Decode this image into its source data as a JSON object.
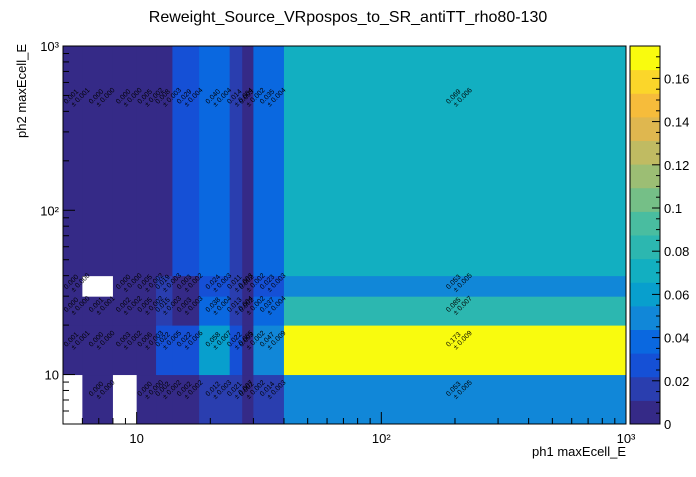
{
  "chart_data": {
    "type": "heatmap",
    "title": "Reweight_Source_VRpospos_to_SR_antiTT_rho80-130",
    "xlabel": "ph1 maxEcell_E",
    "ylabel": "ph2 maxEcell_E",
    "x_scale": "log",
    "y_scale": "log",
    "xlim": [
      5,
      1000
    ],
    "ylim": [
      5,
      1000
    ],
    "x_edges": [
      5,
      6,
      8,
      10,
      12,
      14,
      18,
      24,
      27,
      30,
      40,
      1000
    ],
    "y_edges": [
      5,
      10,
      20,
      30,
      40,
      1000
    ],
    "x_tick_labels": [
      "10",
      "10²",
      "10³"
    ],
    "x_tick_values": [
      10,
      100,
      1000
    ],
    "y_tick_labels": [
      "10",
      "10²",
      "10³"
    ],
    "y_tick_values": [
      10,
      100,
      1000
    ],
    "z_range": [
      0,
      0.175
    ],
    "colorbar_ticks": [
      "0",
      "0.02",
      "0.04",
      "0.06",
      "0.08",
      "0.1",
      "0.12",
      "0.14",
      "0.16"
    ],
    "colorbar_tick_values": [
      0,
      0.02,
      0.04,
      0.06,
      0.08,
      0.1,
      0.12,
      0.14,
      0.16
    ],
    "palette": [
      "#352a87",
      "#2a3eaf",
      "#1550d6",
      "#0a68e0",
      "#1187d8",
      "#089fcd",
      "#12afc1",
      "#2cb7b0",
      "#49bda0",
      "#75bf87",
      "#9cbe74",
      "#c0bb62",
      "#dfb74f",
      "#f6bc3b",
      "#fbd62a",
      "#f9fb0e"
    ],
    "cells": [
      {
        "ix": 0,
        "iy": 0,
        "v": null,
        "label": ""
      },
      {
        "ix": 1,
        "iy": 0,
        "v": 0.0,
        "label": "0.000\n± 0.000"
      },
      {
        "ix": 2,
        "iy": 0,
        "v": null,
        "label": ""
      },
      {
        "ix": 3,
        "iy": 0,
        "v": 0.0,
        "label": "0.000\n± 0.000"
      },
      {
        "ix": 4,
        "iy": 0,
        "v": 0.002,
        "label": "0.002\n± 0.002"
      },
      {
        "ix": 5,
        "iy": 0,
        "v": 0.002,
        "label": "0.002\n± 0.002"
      },
      {
        "ix": 6,
        "iy": 0,
        "v": 0.012,
        "label": "0.012\n± 0.003"
      },
      {
        "ix": 7,
        "iy": 0,
        "v": 0.021,
        "label": "0.021\n± 0.007"
      },
      {
        "ix": 8,
        "iy": 0,
        "v": 0.002,
        "label": "0.002\n± 0.002"
      },
      {
        "ix": 9,
        "iy": 0,
        "v": 0.014,
        "label": "0.014\n± 0.003"
      },
      {
        "ix": 10,
        "iy": 0,
        "v": 0.053,
        "label": "0.053\n± 0.005"
      },
      {
        "ix": 0,
        "iy": 1,
        "v": 0.001,
        "label": "0.001\n± 0.001"
      },
      {
        "ix": 1,
        "iy": 1,
        "v": 0.0,
        "label": "0.000\n± 0.000"
      },
      {
        "ix": 2,
        "iy": 1,
        "v": 0.003,
        "label": "0.003\n± 0.002"
      },
      {
        "ix": 3,
        "iy": 1,
        "v": 0.006,
        "label": "0.006\n± 0.003"
      },
      {
        "ix": 4,
        "iy": 1,
        "v": 0.022,
        "label": "0.022\n± 0.005"
      },
      {
        "ix": 5,
        "iy": 1,
        "v": 0.022,
        "label": "0.022\n± 0.006"
      },
      {
        "ix": 6,
        "iy": 1,
        "v": 0.058,
        "label": "0.058\n± 0.007"
      },
      {
        "ix": 7,
        "iy": 1,
        "v": 0.022,
        "label": "0.022\n± 0.005"
      },
      {
        "ix": 8,
        "iy": 1,
        "v": 0.003,
        "label": "0.003\n± 0.002"
      },
      {
        "ix": 9,
        "iy": 1,
        "v": 0.047,
        "label": "0.047\n± 0.009"
      },
      {
        "ix": 10,
        "iy": 1,
        "v": 0.173,
        "label": "0.173\n± 0.009"
      },
      {
        "ix": 0,
        "iy": 2,
        "v": 0.0,
        "label": "0.000\n± 0.000"
      },
      {
        "ix": 1,
        "iy": 2,
        "v": 0.001,
        "label": "0.001\n± 0.001"
      },
      {
        "ix": 2,
        "iy": 2,
        "v": 0.002,
        "label": "0.002\n± 0.002"
      },
      {
        "ix": 3,
        "iy": 2,
        "v": 0.005,
        "label": "0.005\n± 0.002"
      },
      {
        "ix": 4,
        "iy": 2,
        "v": 0.015,
        "label": "0.015\n± 0.003"
      },
      {
        "ix": 5,
        "iy": 2,
        "v": 0.003,
        "label": "0.003\n± 0.003"
      },
      {
        "ix": 6,
        "iy": 2,
        "v": 0.038,
        "label": "0.038\n± 0.004"
      },
      {
        "ix": 7,
        "iy": 2,
        "v": 0.013,
        "label": "0.013\n± 0.004"
      },
      {
        "ix": 8,
        "iy": 2,
        "v": 0.002,
        "label": "0.002\n± 0.002"
      },
      {
        "ix": 9,
        "iy": 2,
        "v": 0.037,
        "label": "0.037\n± 0.004"
      },
      {
        "ix": 10,
        "iy": 2,
        "v": 0.085,
        "label": "0.085\n± 0.007"
      },
      {
        "ix": 0,
        "iy": 3,
        "v": 0.0,
        "label": "0.000\n± 0.000"
      },
      {
        "ix": 1,
        "iy": 3,
        "v": null,
        "label": ""
      },
      {
        "ix": 2,
        "iy": 3,
        "v": 0.0,
        "label": "0.000\n± 0.000"
      },
      {
        "ix": 3,
        "iy": 3,
        "v": 0.005,
        "label": "0.005\n± 0.002"
      },
      {
        "ix": 4,
        "iy": 3,
        "v": 0.019,
        "label": "0.019\n± 0.003"
      },
      {
        "ix": 5,
        "iy": 3,
        "v": 0.003,
        "label": "0.003\n± 0.002"
      },
      {
        "ix": 6,
        "iy": 3,
        "v": 0.024,
        "label": "0.024\n± 0.003"
      },
      {
        "ix": 7,
        "iy": 3,
        "v": 0.011,
        "label": "0.011\n± 0.003"
      },
      {
        "ix": 8,
        "iy": 3,
        "v": 0.002,
        "label": "0.002\n± 0.002"
      },
      {
        "ix": 9,
        "iy": 3,
        "v": 0.023,
        "label": "0.023\n± 0.003"
      },
      {
        "ix": 10,
        "iy": 3,
        "v": 0.053,
        "label": "0.053\n± 0.005"
      },
      {
        "ix": 0,
        "iy": 4,
        "v": 0.001,
        "label": "0.001\n± 0.001"
      },
      {
        "ix": 1,
        "iy": 4,
        "v": 0.0,
        "label": "0.000\n± 0.000"
      },
      {
        "ix": 2,
        "iy": 4,
        "v": 0.0,
        "label": "0.000\n± 0.000"
      },
      {
        "ix": 3,
        "iy": 4,
        "v": 0.005,
        "label": "0.005\n± 0.002"
      },
      {
        "ix": 4,
        "iy": 4,
        "v": 0.008,
        "label": "0.008\n± 0.003"
      },
      {
        "ix": 5,
        "iy": 4,
        "v": 0.029,
        "label": "0.029\n± 0.004"
      },
      {
        "ix": 6,
        "iy": 4,
        "v": 0.04,
        "label": "0.040\n± 0.004"
      },
      {
        "ix": 7,
        "iy": 4,
        "v": 0.014,
        "label": "0.014\n± 0.004"
      },
      {
        "ix": 8,
        "iy": 4,
        "v": 0.003,
        "label": "0.003\n± 0.002"
      },
      {
        "ix": 9,
        "iy": 4,
        "v": 0.035,
        "label": "0.035\n± 0.004"
      },
      {
        "ix": 10,
        "iy": 4,
        "v": 0.069,
        "label": "0.069\n± 0.006"
      }
    ]
  }
}
